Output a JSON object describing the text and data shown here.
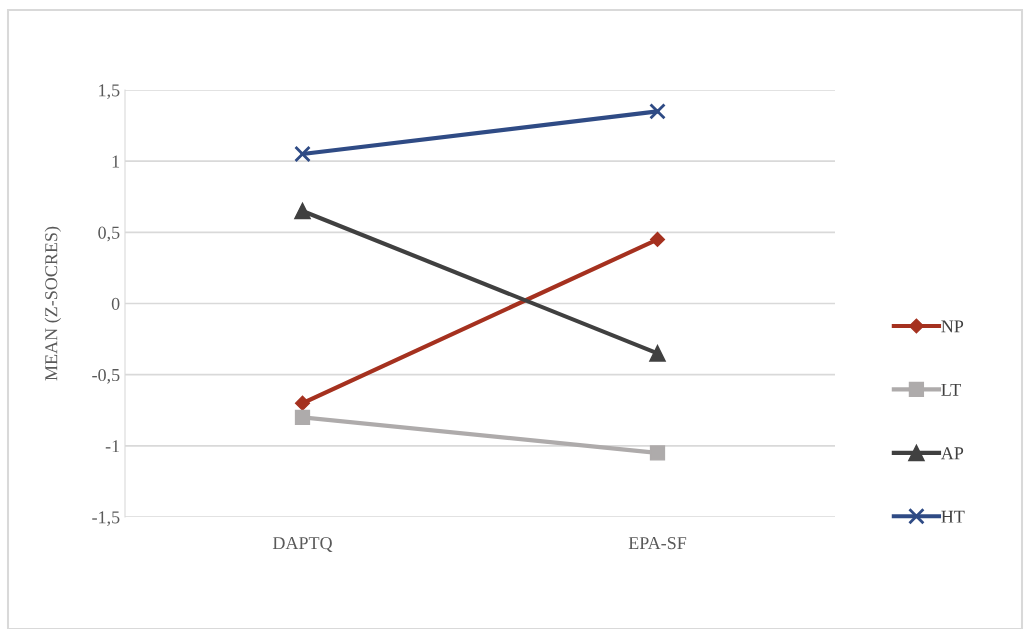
{
  "chart_data": {
    "type": "line",
    "ylabel": "MEAN (Z-SOCRES)",
    "categories": [
      "DAPTQ",
      "EPA-SF"
    ],
    "series": [
      {
        "name": "NP",
        "color": "#a5311f",
        "marker": "diamond",
        "values": [
          -0.7,
          0.45
        ]
      },
      {
        "name": "LT",
        "color": "#aeabab",
        "marker": "square",
        "values": [
          -0.8,
          -1.05
        ]
      },
      {
        "name": "AP",
        "color": "#404040",
        "marker": "triangle",
        "values": [
          0.65,
          -0.35
        ]
      },
      {
        "name": "HT",
        "color": "#2f4b85",
        "marker": "cross",
        "values": [
          1.05,
          1.35
        ]
      }
    ],
    "ylim": [
      -1.5,
      1.5
    ],
    "yticks": [
      {
        "value": -1.5,
        "label": "-1,5"
      },
      -1,
      {
        "value": -0.5,
        "label": "-0,5"
      },
      0,
      {
        "value": 0.5,
        "label": "0,5"
      },
      1,
      {
        "value": 1.5,
        "label": "1,5"
      }
    ],
    "grid": "y",
    "legend": "right",
    "line_style": "solid"
  }
}
